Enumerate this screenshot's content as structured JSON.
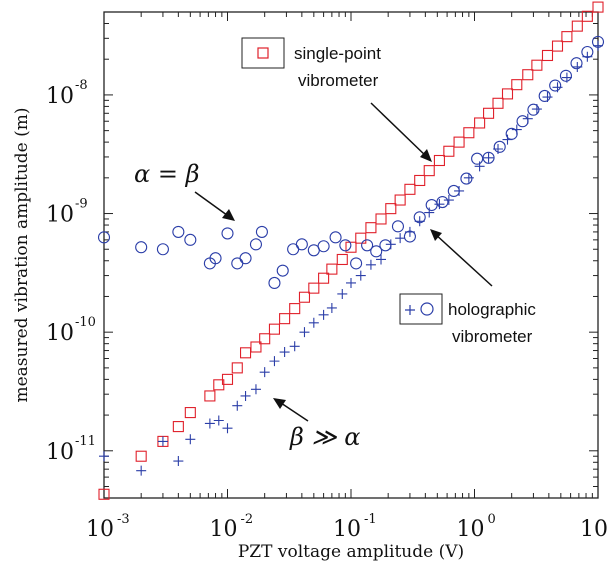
{
  "chart_data": {
    "type": "scatter",
    "title": "",
    "xlabel": "PZT voltage amplitude (V)",
    "ylabel": "measured vibration amplitude (m)",
    "x_scale": "log",
    "y_scale": "log",
    "xlim": [
      0.001,
      10
    ],
    "ylim": [
      4e-12,
      5e-08
    ],
    "x_ticks": [
      {
        "value": 0.001,
        "base": "10",
        "exp": "-3"
      },
      {
        "value": 0.01,
        "base": "10",
        "exp": "-2"
      },
      {
        "value": 0.1,
        "base": "10",
        "exp": "-1"
      },
      {
        "value": 1,
        "base": "10",
        "exp": "0"
      },
      {
        "value": 10,
        "base": "10",
        "exp": "1"
      }
    ],
    "y_ticks": [
      {
        "value": 1e-11,
        "base": "10",
        "exp": "-11"
      },
      {
        "value": 1e-10,
        "base": "10",
        "exp": "-10"
      },
      {
        "value": 1e-09,
        "base": "10",
        "exp": "-9"
      },
      {
        "value": 1e-08,
        "base": "10",
        "exp": "-8"
      }
    ],
    "grid": false,
    "series": [
      {
        "name": "single-point vibrometer",
        "marker": "square",
        "color": "#e0202a",
        "points": [
          [
            0.001,
            4.3e-12
          ],
          [
            0.002,
            9e-12
          ],
          [
            0.003,
            1.2e-11
          ],
          [
            0.004,
            1.6e-11
          ],
          [
            0.005,
            2.1e-11
          ],
          [
            0.0072,
            2.9e-11
          ],
          [
            0.0085,
            3.6e-11
          ],
          [
            0.01,
            4e-11
          ],
          [
            0.012,
            5e-11
          ],
          [
            0.014,
            6.7e-11
          ],
          [
            0.017,
            7.5e-11
          ],
          [
            0.02,
            8.8e-11
          ],
          [
            0.024,
            1.06e-10
          ],
          [
            0.029,
            1.3e-10
          ],
          [
            0.035,
            1.58e-10
          ],
          [
            0.042,
            1.97e-10
          ],
          [
            0.05,
            2.35e-10
          ],
          [
            0.06,
            2.85e-10
          ],
          [
            0.07,
            3.4e-10
          ],
          [
            0.085,
            4.1e-10
          ],
          [
            0.1,
            5.2e-10
          ],
          [
            0.12,
            6.2e-10
          ],
          [
            0.145,
            7.6e-10
          ],
          [
            0.175,
            9e-10
          ],
          [
            0.21,
            1.1e-09
          ],
          [
            0.25,
            1.3e-09
          ],
          [
            0.3,
            1.6e-09
          ],
          [
            0.36,
            1.9e-09
          ],
          [
            0.43,
            2.3e-09
          ],
          [
            0.52,
            2.8e-09
          ],
          [
            0.62,
            3.35e-09
          ],
          [
            0.75,
            4e-09
          ],
          [
            0.9,
            4.8e-09
          ],
          [
            1.1,
            5.8e-09
          ],
          [
            1.3,
            7e-09
          ],
          [
            1.55,
            8.5e-09
          ],
          [
            1.85,
            1.02e-08
          ],
          [
            2.2,
            1.22e-08
          ],
          [
            2.7,
            1.48e-08
          ],
          [
            3.2,
            1.78e-08
          ],
          [
            3.9,
            2.15e-08
          ],
          [
            4.7,
            2.58e-08
          ],
          [
            5.6,
            3.1e-08
          ],
          [
            6.8,
            3.8e-08
          ],
          [
            8.2,
            4.6e-08
          ],
          [
            10,
            5.5e-08
          ]
        ]
      },
      {
        "name": "holographic vibrometer",
        "color": "#2b3ea8",
        "circles": [
          [
            0.001,
            6.3e-10
          ],
          [
            0.002,
            5.2e-10
          ],
          [
            0.003,
            5e-10
          ],
          [
            0.004,
            7e-10
          ],
          [
            0.005,
            6e-10
          ],
          [
            0.0072,
            3.8e-10
          ],
          [
            0.008,
            4.2e-10
          ],
          [
            0.01,
            6.8e-10
          ],
          [
            0.012,
            3.8e-10
          ],
          [
            0.014,
            4.2e-10
          ],
          [
            0.017,
            5.5e-10
          ],
          [
            0.019,
            7e-10
          ],
          [
            0.024,
            2.6e-10
          ],
          [
            0.028,
            3.3e-10
          ],
          [
            0.034,
            5e-10
          ],
          [
            0.04,
            5.5e-10
          ],
          [
            0.05,
            4.9e-10
          ],
          [
            0.06,
            5.3e-10
          ],
          [
            0.075,
            6.3e-10
          ],
          [
            0.09,
            5.4e-10
          ],
          [
            0.11,
            3.8e-10
          ],
          [
            0.135,
            5.4e-10
          ],
          [
            0.16,
            4.8e-10
          ],
          [
            0.19,
            5.4e-10
          ],
          [
            0.24,
            7.8e-10
          ],
          [
            0.3,
            6.4e-10
          ],
          [
            0.36,
            9.3e-10
          ],
          [
            0.45,
            1.18e-09
          ],
          [
            0.55,
            1.25e-09
          ],
          [
            0.68,
            1.55e-09
          ],
          [
            0.86,
            1.97e-09
          ],
          [
            1.05,
            2.9e-09
          ],
          [
            1.3,
            2.95e-09
          ],
          [
            1.6,
            3.65e-09
          ],
          [
            2.0,
            4.7e-09
          ],
          [
            2.45,
            6e-09
          ],
          [
            3.0,
            7.5e-09
          ],
          [
            3.7,
            9.8e-09
          ],
          [
            4.5,
            1.2e-08
          ],
          [
            5.5,
            1.45e-08
          ],
          [
            6.7,
            1.85e-08
          ],
          [
            8.2,
            2.3e-08
          ],
          [
            10,
            2.8e-08
          ]
        ],
        "crosses": [
          [
            0.001,
            9e-12
          ],
          [
            0.002,
            6.8e-12
          ],
          [
            0.003,
            1.2e-11
          ],
          [
            0.004,
            8.2e-12
          ],
          [
            0.005,
            1.25e-11
          ],
          [
            0.0072,
            1.7e-11
          ],
          [
            0.0085,
            1.8e-11
          ],
          [
            0.01,
            1.55e-11
          ],
          [
            0.012,
            2.4e-11
          ],
          [
            0.014,
            2.9e-11
          ],
          [
            0.017,
            3.3e-11
          ],
          [
            0.02,
            4.6e-11
          ],
          [
            0.024,
            5.7e-11
          ],
          [
            0.029,
            6.8e-11
          ],
          [
            0.035,
            7.6e-11
          ],
          [
            0.042,
            1e-10
          ],
          [
            0.05,
            1.2e-10
          ],
          [
            0.06,
            1.4e-10
          ],
          [
            0.07,
            1.6e-10
          ],
          [
            0.085,
            2.1e-10
          ],
          [
            0.1,
            2.6e-10
          ],
          [
            0.12,
            3e-10
          ],
          [
            0.145,
            3.7e-10
          ],
          [
            0.175,
            4.1e-10
          ],
          [
            0.21,
            5.5e-10
          ],
          [
            0.25,
            6.2e-10
          ],
          [
            0.3,
            7e-10
          ],
          [
            0.36,
            8.6e-10
          ],
          [
            0.43,
            1.02e-09
          ],
          [
            0.52,
            1.2e-09
          ],
          [
            0.62,
            1.3e-09
          ],
          [
            0.75,
            1.55e-09
          ],
          [
            0.9,
            2e-09
          ],
          [
            1.1,
            2.5e-09
          ],
          [
            1.3,
            2.95e-09
          ],
          [
            1.55,
            3.5e-09
          ],
          [
            1.85,
            4.2e-09
          ],
          [
            2.2,
            5.1e-09
          ],
          [
            2.7,
            6.3e-09
          ],
          [
            3.2,
            7.6e-09
          ],
          [
            3.9,
            9.6e-09
          ],
          [
            4.7,
            1.16e-08
          ],
          [
            5.6,
            1.4e-08
          ],
          [
            6.8,
            1.72e-08
          ],
          [
            8.2,
            2.1e-08
          ],
          [
            10,
            2.6e-08
          ]
        ]
      }
    ],
    "legend": [
      {
        "text_lines": [
          "single-point",
          "vibrometer"
        ],
        "placement": "top-right"
      },
      {
        "text_lines": [
          "holographic",
          "vibrometer"
        ],
        "placement": "center-right"
      }
    ],
    "annotations": [
      {
        "text": "α = β"
      },
      {
        "text": "β ≫ α"
      }
    ]
  }
}
